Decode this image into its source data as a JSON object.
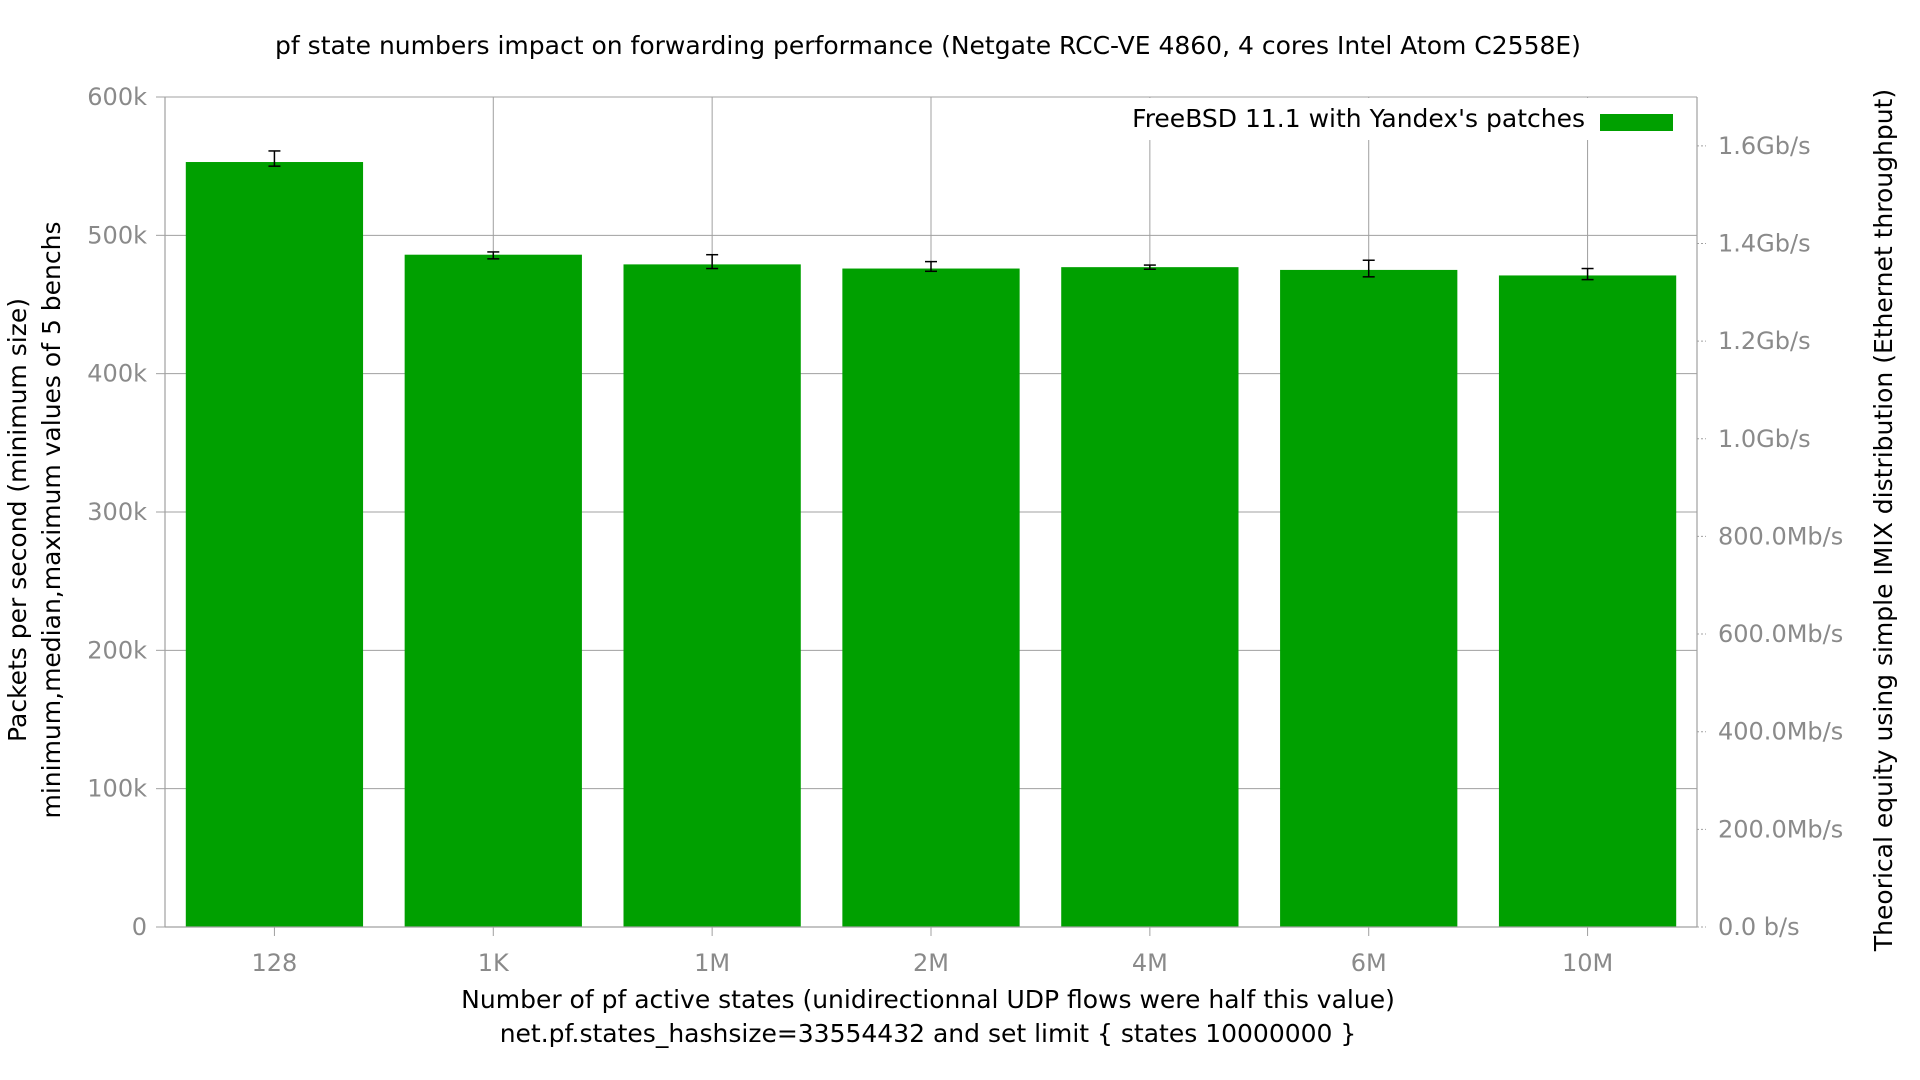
{
  "chart_data": {
    "type": "bar",
    "title": "pf state numbers impact on forwarding performance (Netgate RCC-VE 4860, 4 cores Intel Atom C2558E)",
    "xlabel": "Number of pf active states (unidirectionnal UDP flows were half this value)",
    "xlabel2": "net.pf.states_hashsize=33554432 and set limit { states 10000000 }",
    "ylabel": "Packets per second (minimum size)",
    "ylabel2": "minimum,median,maximum values of 5 benchs",
    "y2label": "Theorical equity using simple IMIX distribution (Ethernet throughput)",
    "categories": [
      "128",
      "1K",
      "1M",
      "2M",
      "4M",
      "6M",
      "10M"
    ],
    "series": [
      {
        "name": "FreeBSD 11.1 with Yandex's patches",
        "color": "#00a000",
        "values": [
          553000,
          486000,
          479000,
          476000,
          477000,
          475000,
          471000
        ],
        "min": [
          550000,
          483000,
          476000,
          474000,
          475500,
          470000,
          468000
        ],
        "max": [
          561000,
          488000,
          486000,
          481000,
          478500,
          482000,
          476000
        ]
      }
    ],
    "ylim": [
      0,
      600000
    ],
    "yticks": [
      {
        "value": 0,
        "label": "0"
      },
      {
        "value": 100000,
        "label": "100k"
      },
      {
        "value": 200000,
        "label": "200k"
      },
      {
        "value": 300000,
        "label": "300k"
      },
      {
        "value": 400000,
        "label": "400k"
      },
      {
        "value": 500000,
        "label": "500k"
      },
      {
        "value": 600000,
        "label": "600k"
      }
    ],
    "y2lim": [
      0,
      1.7
    ],
    "y2ticks": [
      {
        "value": 0.0,
        "label": "0.0 b/s"
      },
      {
        "value": 0.2,
        "label": "200.0Mb/s"
      },
      {
        "value": 0.4,
        "label": "400.0Mb/s"
      },
      {
        "value": 0.6,
        "label": "600.0Mb/s"
      },
      {
        "value": 0.8,
        "label": "800.0Mb/s"
      },
      {
        "value": 1.0,
        "label": "1.0Gb/s"
      },
      {
        "value": 1.2,
        "label": "1.2Gb/s"
      },
      {
        "value": 1.4,
        "label": "1.4Gb/s"
      },
      {
        "value": 1.6,
        "label": "1.6Gb/s"
      }
    ],
    "grid": true,
    "legend_position": "top-right"
  }
}
